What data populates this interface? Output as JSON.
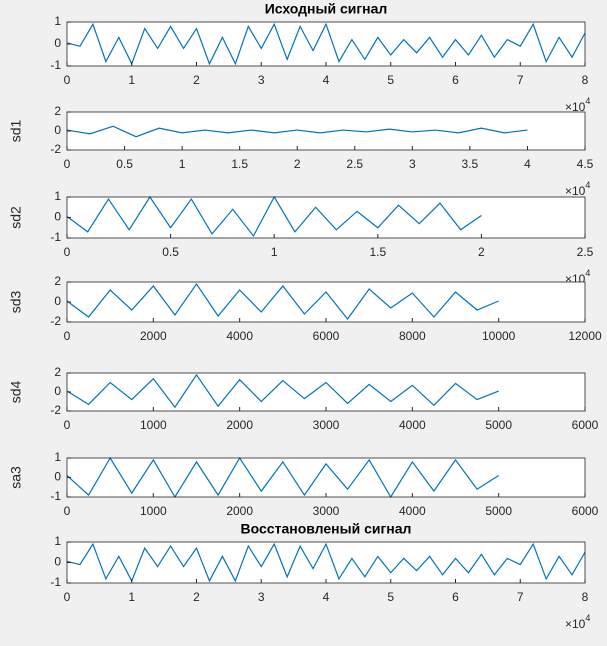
{
  "chart_data": [
    {
      "type": "line",
      "title": "Исходный сигнал",
      "x": [
        0,
        0.2,
        0.4,
        0.6,
        0.8,
        1,
        1.2,
        1.4,
        1.6,
        1.8,
        2,
        2.2,
        2.4,
        2.6,
        2.8,
        3,
        3.2,
        3.4,
        3.6,
        3.8,
        4,
        4.2,
        4.4,
        4.6,
        4.8,
        5,
        5.2,
        5.4,
        5.6,
        5.8,
        6,
        6.2,
        6.4,
        6.6,
        6.8,
        7,
        7.2,
        7.4,
        7.6,
        7.8,
        8
      ],
      "series": [
        {
          "color": "#0072bd",
          "values": [
            0.05,
            -0.1,
            0.9,
            -0.8,
            0.3,
            -0.9,
            0.7,
            -0.2,
            0.8,
            -0.2,
            0.7,
            -0.9,
            0.3,
            -0.9,
            0.8,
            -0.2,
            0.9,
            -0.7,
            0.8,
            -0.3,
            0.9,
            -0.8,
            0.2,
            -0.7,
            0.3,
            -0.5,
            0.2,
            -0.4,
            0.3,
            -0.6,
            0.2,
            -0.5,
            0.4,
            -0.6,
            0.2,
            -0.1,
            0.9,
            -0.8,
            0.3,
            -0.6,
            0.5
          ]
        }
      ],
      "xlim": [
        0,
        8
      ],
      "ylim": [
        -1,
        1
      ],
      "xticks": [
        0,
        1,
        2,
        3,
        4,
        5,
        6,
        7,
        8
      ],
      "yticks": [
        -1,
        0,
        1
      ],
      "x_exponent": {
        "base": "×10",
        "power": 4
      }
    },
    {
      "type": "line",
      "ylabel": "sd1",
      "x": [
        0,
        0.2,
        0.4,
        0.6,
        0.8,
        1,
        1.2,
        1.4,
        1.6,
        1.8,
        2,
        2.2,
        2.4,
        2.6,
        2.8,
        3,
        3.2,
        3.4,
        3.6,
        3.8,
        4
      ],
      "series": [
        {
          "color": "#0072bd",
          "values": [
            0.1,
            -0.3,
            0.5,
            -0.6,
            0.3,
            -0.2,
            0.1,
            -0.2,
            0.1,
            -0.2,
            0.1,
            -0.2,
            0.1,
            -0.1,
            0.2,
            -0.1,
            0.1,
            -0.2,
            0.3,
            -0.2,
            0.1
          ]
        }
      ],
      "xlim": [
        0,
        4.5
      ],
      "ylim": [
        -2,
        2
      ],
      "xticks": [
        0,
        0.5,
        1,
        1.5,
        2,
        2.5,
        3,
        3.5,
        4,
        4.5
      ],
      "yticks": [
        -2,
        0,
        2
      ],
      "x_exponent": {
        "base": "×10",
        "power": 4
      }
    },
    {
      "type": "line",
      "ylabel": "sd2",
      "x": [
        0,
        0.1,
        0.2,
        0.3,
        0.4,
        0.5,
        0.6,
        0.7,
        0.8,
        0.9,
        1,
        1.1,
        1.2,
        1.3,
        1.4,
        1.5,
        1.6,
        1.7,
        1.8,
        1.9,
        2
      ],
      "series": [
        {
          "color": "#0072bd",
          "values": [
            0.05,
            -0.7,
            0.9,
            -0.6,
            1,
            -0.5,
            0.9,
            -0.8,
            0.4,
            -0.9,
            1,
            -0.7,
            0.5,
            -0.6,
            0.3,
            -0.5,
            0.6,
            -0.3,
            0.7,
            -0.6,
            0.1
          ]
        }
      ],
      "xlim": [
        0,
        2.5
      ],
      "ylim": [
        -1,
        1
      ],
      "xticks": [
        0,
        0.5,
        1,
        1.5,
        2,
        2.5
      ],
      "yticks": [
        -1,
        0,
        1
      ],
      "x_exponent": {
        "base": "×10",
        "power": 4
      }
    },
    {
      "type": "line",
      "ylabel": "sd3",
      "x": [
        0,
        500,
        1000,
        1500,
        2000,
        2500,
        3000,
        3500,
        4000,
        4500,
        5000,
        5500,
        6000,
        6500,
        7000,
        7500,
        8000,
        8500,
        9000,
        9500,
        10000
      ],
      "series": [
        {
          "color": "#0072bd",
          "values": [
            0.1,
            -1.5,
            1.2,
            -0.8,
            1.6,
            -1.3,
            1.8,
            -1.4,
            1.2,
            -1.0,
            1.6,
            -1.2,
            1.0,
            -1.7,
            1.3,
            -0.6,
            0.9,
            -1.5,
            1.0,
            -0.8,
            0.1
          ]
        }
      ],
      "xlim": [
        0,
        12000
      ],
      "ylim": [
        -2,
        2
      ],
      "xticks": [
        0,
        2000,
        4000,
        6000,
        8000,
        10000,
        12000
      ],
      "yticks": [
        -2,
        0,
        2
      ]
    },
    {
      "type": "line",
      "ylabel": "sd4",
      "x": [
        0,
        250,
        500,
        750,
        1000,
        1250,
        1500,
        1750,
        2000,
        2250,
        2500,
        2750,
        3000,
        3250,
        3500,
        3750,
        4000,
        4250,
        4500,
        4750,
        5000
      ],
      "series": [
        {
          "color": "#0072bd",
          "values": [
            0.1,
            -1.3,
            1.0,
            -0.8,
            1.4,
            -1.6,
            1.8,
            -1.5,
            1.3,
            -1.0,
            1.2,
            -0.7,
            1.0,
            -1.2,
            0.8,
            -1.0,
            0.7,
            -1.4,
            0.9,
            -0.8,
            0.1
          ]
        }
      ],
      "xlim": [
        0,
        6000
      ],
      "ylim": [
        -2,
        2
      ],
      "xticks": [
        0,
        1000,
        2000,
        3000,
        4000,
        5000,
        6000
      ],
      "yticks": [
        -2,
        0,
        2
      ]
    },
    {
      "type": "line",
      "ylabel": "sa3",
      "x": [
        0,
        250,
        500,
        750,
        1000,
        1250,
        1500,
        1750,
        2000,
        2250,
        2500,
        2750,
        3000,
        3250,
        3500,
        3750,
        4000,
        4250,
        4500,
        4750,
        5000
      ],
      "series": [
        {
          "color": "#0072bd",
          "values": [
            0.1,
            -0.9,
            1,
            -0.8,
            0.9,
            -1,
            0.8,
            -0.9,
            1,
            -0.7,
            0.8,
            -0.9,
            0.7,
            -0.6,
            0.9,
            -1,
            0.8,
            -0.7,
            0.9,
            -0.6,
            0.1
          ]
        }
      ],
      "xlim": [
        0,
        6000
      ],
      "ylim": [
        -1,
        1
      ],
      "xticks": [
        0,
        1000,
        2000,
        3000,
        4000,
        5000,
        6000
      ],
      "yticks": [
        -1,
        0,
        1
      ]
    },
    {
      "type": "line",
      "title": "Восстановленый сигнал",
      "x": [
        0,
        0.2,
        0.4,
        0.6,
        0.8,
        1,
        1.2,
        1.4,
        1.6,
        1.8,
        2,
        2.2,
        2.4,
        2.6,
        2.8,
        3,
        3.2,
        3.4,
        3.6,
        3.8,
        4,
        4.2,
        4.4,
        4.6,
        4.8,
        5,
        5.2,
        5.4,
        5.6,
        5.8,
        6,
        6.2,
        6.4,
        6.6,
        6.8,
        7,
        7.2,
        7.4,
        7.6,
        7.8,
        8
      ],
      "series": [
        {
          "color": "#0072bd",
          "values": [
            0.05,
            -0.1,
            0.9,
            -0.8,
            0.3,
            -0.9,
            0.7,
            -0.2,
            0.8,
            -0.2,
            0.7,
            -0.9,
            0.3,
            -0.9,
            0.8,
            -0.2,
            0.9,
            -0.7,
            0.8,
            -0.3,
            0.9,
            -0.8,
            0.2,
            -0.7,
            0.3,
            -0.5,
            0.2,
            -0.4,
            0.3,
            -0.6,
            0.2,
            -0.5,
            0.4,
            -0.6,
            0.2,
            -0.1,
            0.9,
            -0.8,
            0.3,
            -0.6,
            0.5
          ]
        }
      ],
      "xlim": [
        0,
        8
      ],
      "ylim": [
        -1,
        1
      ],
      "xticks": [
        0,
        1,
        2,
        3,
        4,
        5,
        6,
        7,
        8
      ],
      "yticks": [
        -1,
        0,
        1
      ],
      "x_exponent": {
        "base": "×10",
        "power": 4
      }
    }
  ]
}
